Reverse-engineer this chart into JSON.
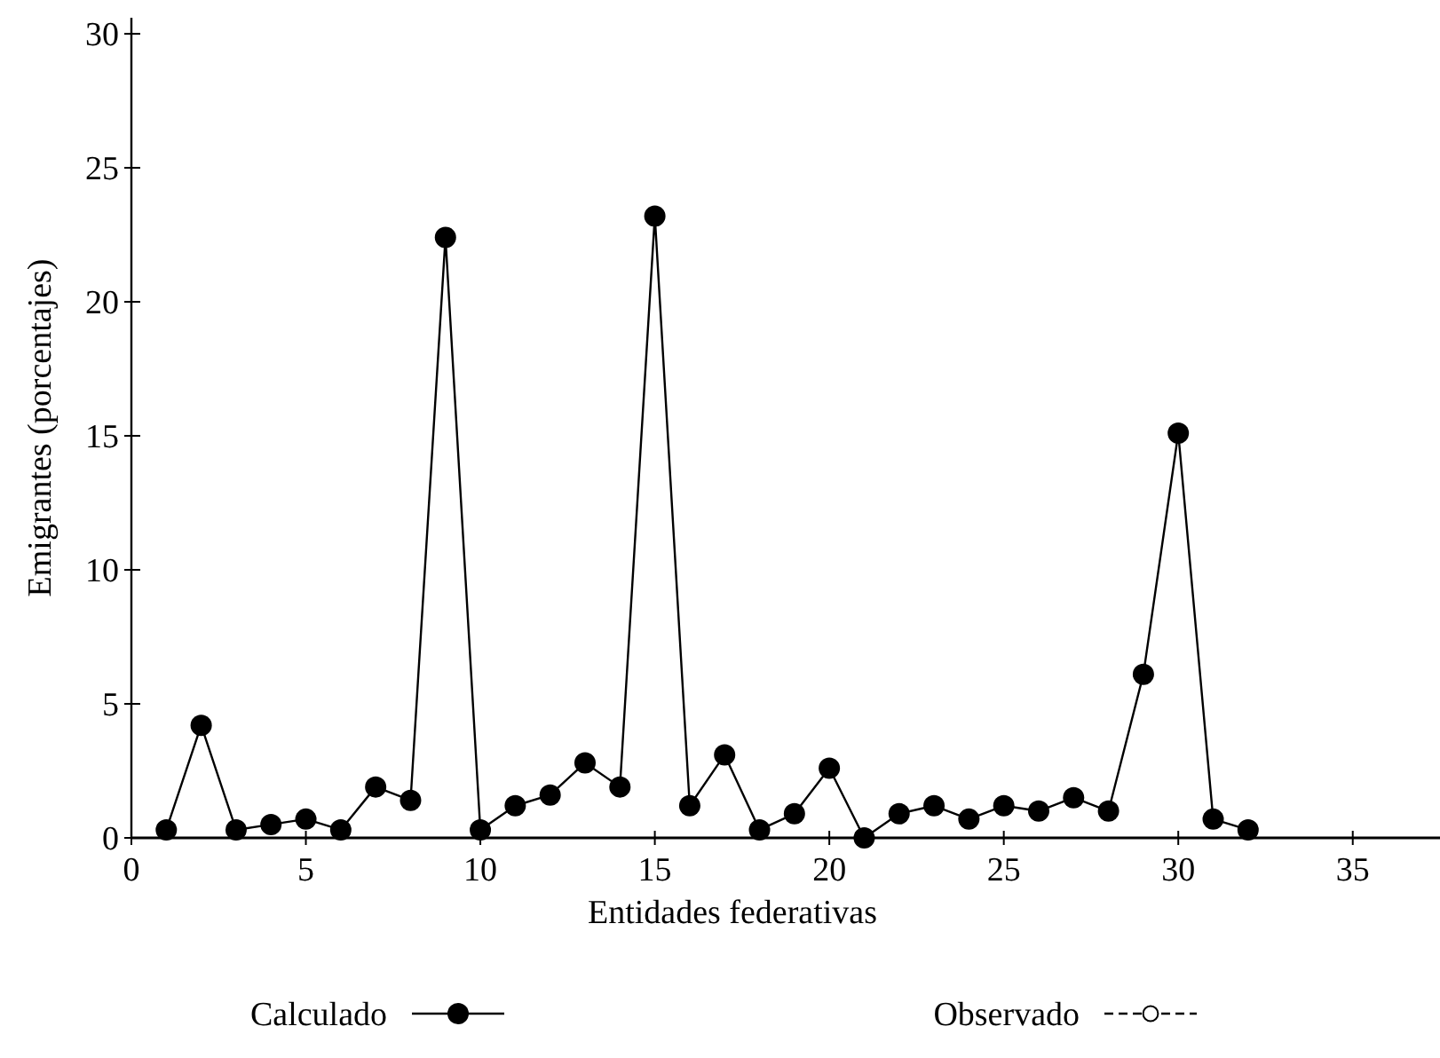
{
  "chart_data": {
    "type": "line",
    "xlabel": "Entidades federativas",
    "ylabel": "Emigrantes (porcentajes)",
    "x": [
      1,
      2,
      3,
      4,
      5,
      6,
      7,
      8,
      9,
      10,
      11,
      12,
      13,
      14,
      15,
      16,
      17,
      18,
      19,
      20,
      21,
      22,
      23,
      24,
      25,
      26,
      27,
      28,
      29,
      30,
      31,
      32
    ],
    "series": [
      {
        "name": "Calculado",
        "color": "#000000",
        "marker": "circle",
        "line_style": "solid",
        "values": [
          0.3,
          4.2,
          0.3,
          0.5,
          0.7,
          0.3,
          1.9,
          1.4,
          22.4,
          0.3,
          1.2,
          1.6,
          2.8,
          1.9,
          23.2,
          1.2,
          3.1,
          0.3,
          0.9,
          2.6,
          0,
          0.9,
          1.2,
          0.7,
          1.2,
          1.0,
          1.5,
          1.0,
          6.1,
          15.1,
          0.7,
          0.3
        ]
      },
      {
        "name": "Observado",
        "color": "#000000",
        "marker": "circle_open",
        "line_style": "dashed",
        "values": [
          null,
          null,
          null,
          null,
          null,
          null,
          null,
          null,
          null,
          null,
          null,
          null,
          null,
          null,
          null,
          null,
          null,
          null,
          null,
          null,
          null,
          null,
          null,
          null,
          null,
          null,
          null,
          null,
          null,
          null,
          null,
          null
        ]
      }
    ],
    "xlim": [
      0,
      37.5
    ],
    "xticks": [
      0,
      5,
      10,
      15,
      20,
      25,
      30,
      35
    ],
    "ylim": [
      0,
      30.6
    ],
    "yticks": [
      0,
      5,
      10,
      15,
      20,
      25,
      30
    ],
    "grid": false,
    "legend": "bottom"
  }
}
